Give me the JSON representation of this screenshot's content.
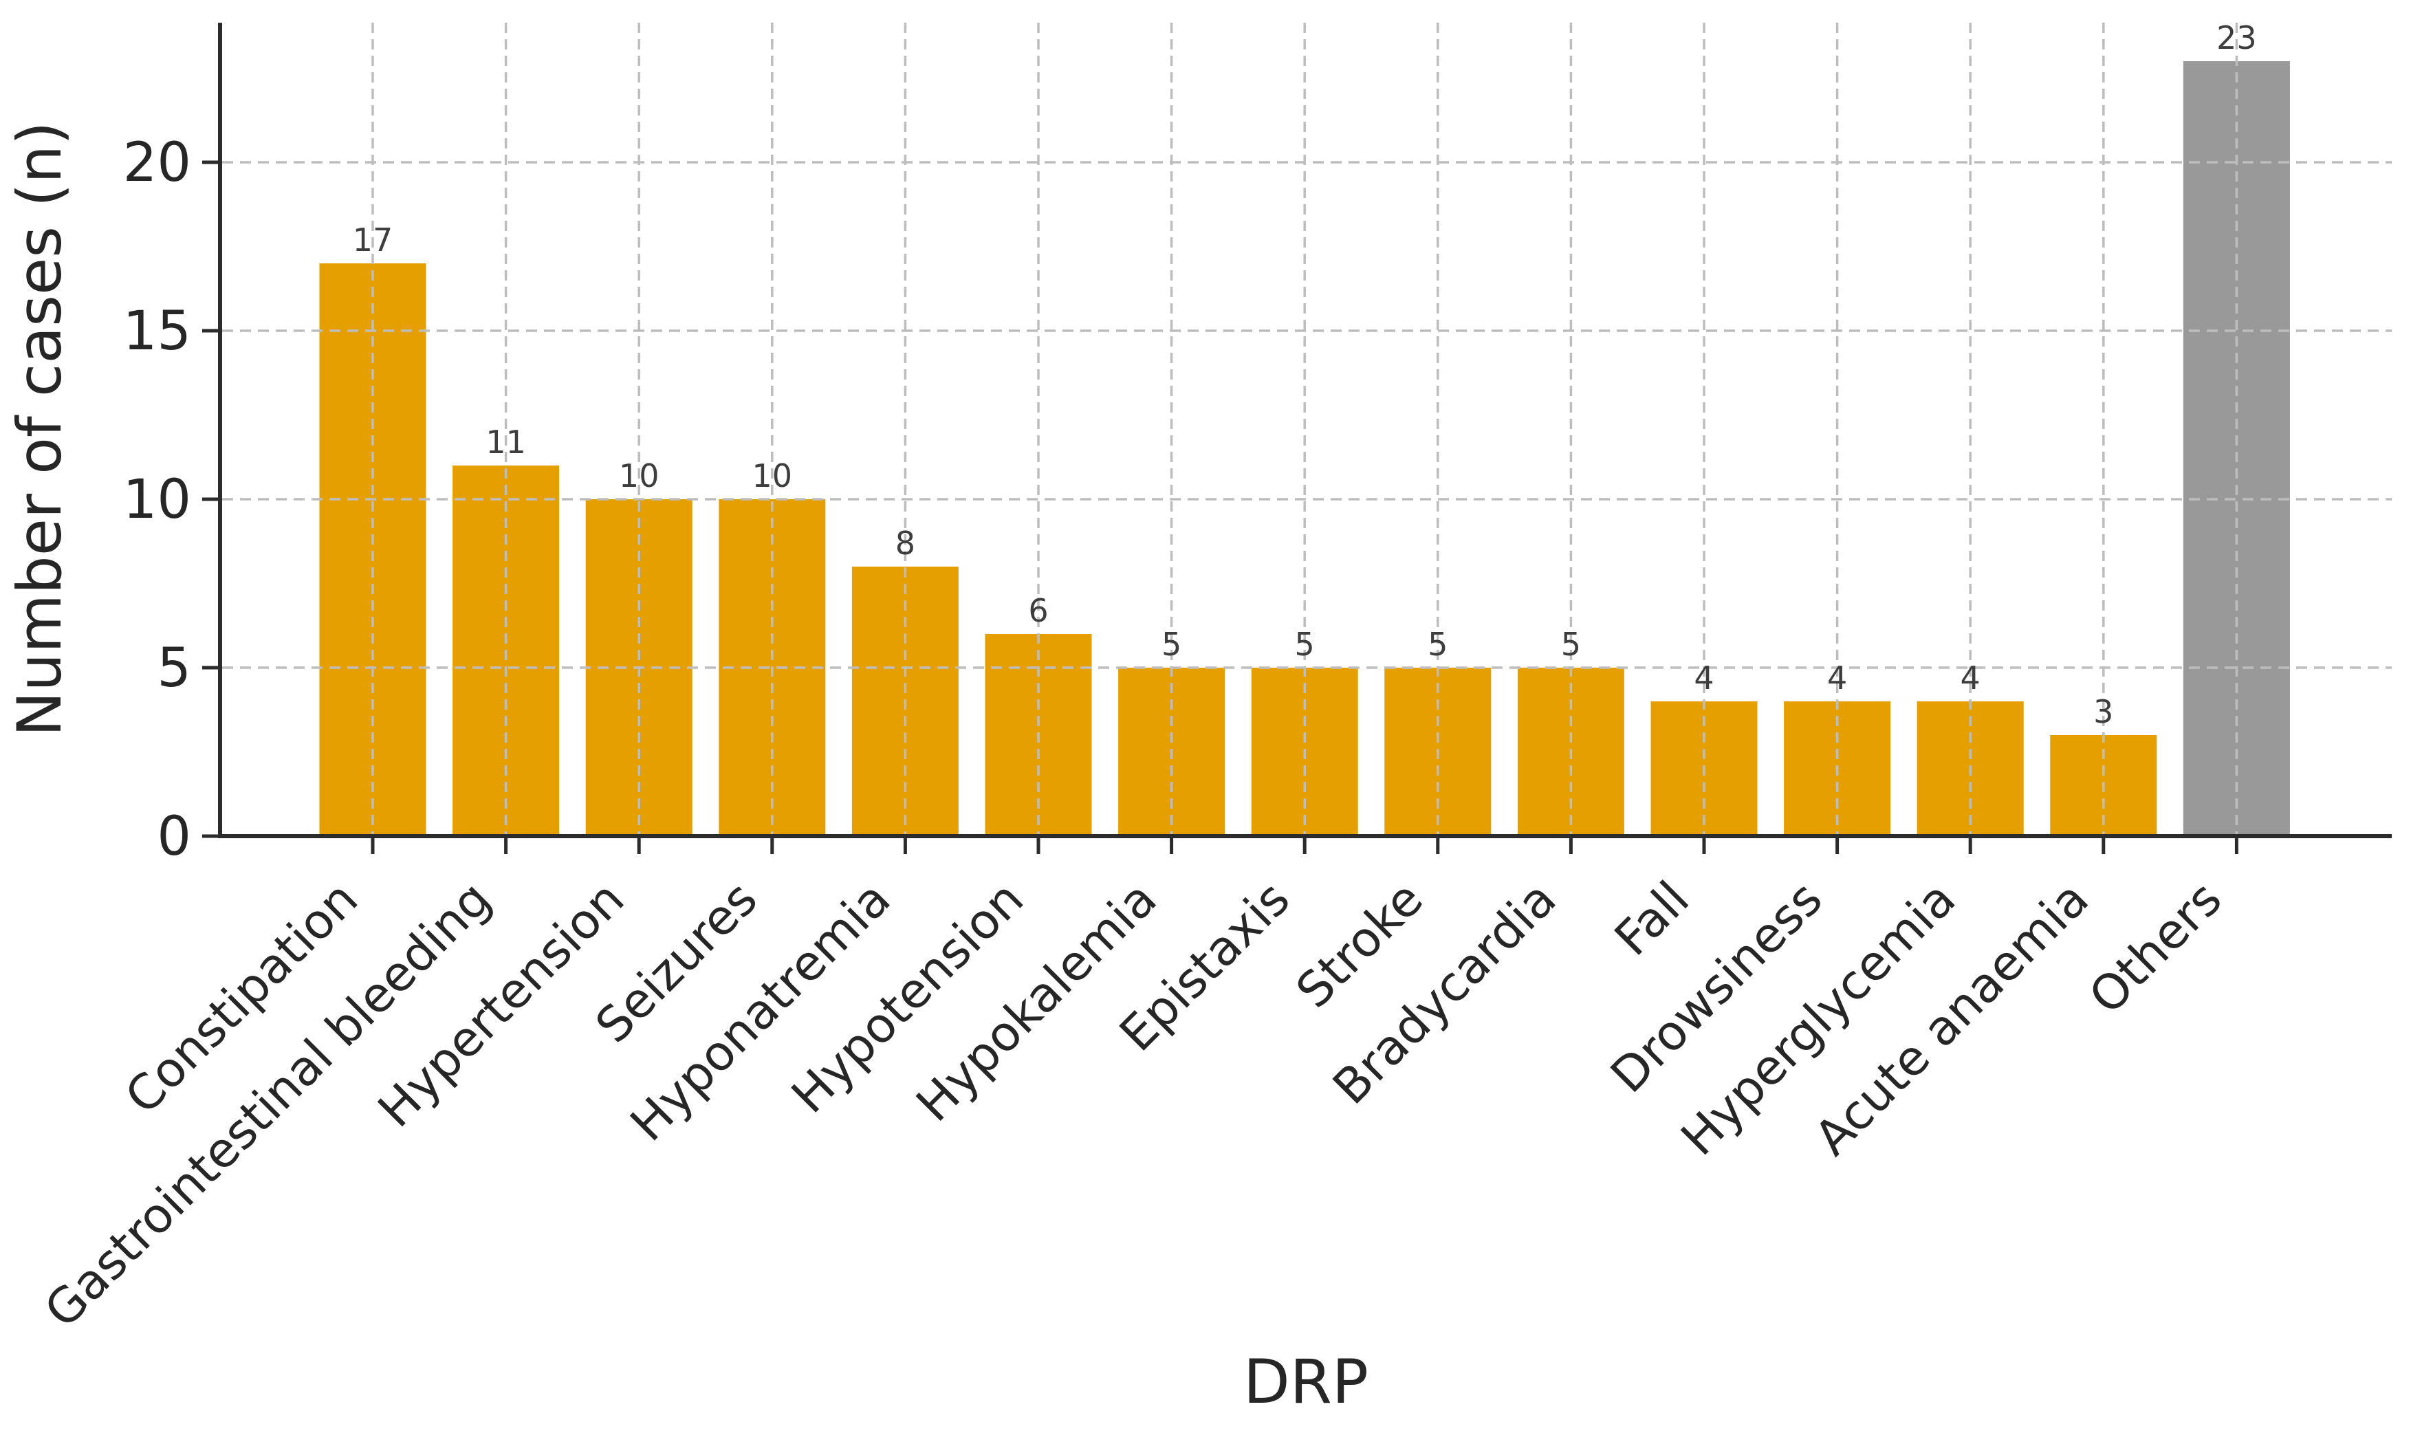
{
  "chart_data": {
    "type": "bar",
    "title": "",
    "xlabel": "DRP",
    "ylabel": "Number of cases (n)",
    "categories": [
      "Constipation",
      "Gastrointestinal bleeding",
      "Hypertension",
      "Seizures",
      "Hyponatremia",
      "Hypotension",
      "Hypokalemia",
      "Epistaxis",
      "Stroke",
      "Bradycardia",
      "Fall",
      "Drowsiness",
      "Hyperglycemia",
      "Acute anaemia",
      "Others"
    ],
    "values": [
      17,
      11,
      10,
      10,
      8,
      6,
      5,
      5,
      5,
      5,
      4,
      4,
      4,
      3,
      23
    ],
    "bar_colors": [
      "#E69F00",
      "#E69F00",
      "#E69F00",
      "#E69F00",
      "#E69F00",
      "#E69F00",
      "#E69F00",
      "#E69F00",
      "#E69F00",
      "#E69F00",
      "#E69F00",
      "#E69F00",
      "#E69F00",
      "#E69F00",
      "#999999"
    ],
    "value_labels_shown": true,
    "yticks": [
      0,
      5,
      10,
      15,
      20
    ],
    "ylim": [
      0,
      24
    ],
    "xtick_rotation_degrees": 45,
    "grid": {
      "show": true,
      "style": "dashed",
      "axes": "both",
      "above_bars": true
    },
    "legend_position": "none"
  },
  "style": {
    "bar_color_default": "#E69F00",
    "bar_color_others": "#999999",
    "axis_color": "#2b2b2b",
    "grid_color": "#bdbdbd",
    "tick_label_color": "#262626",
    "value_label_color": "#3d3d3d",
    "background_color": "#ffffff"
  }
}
